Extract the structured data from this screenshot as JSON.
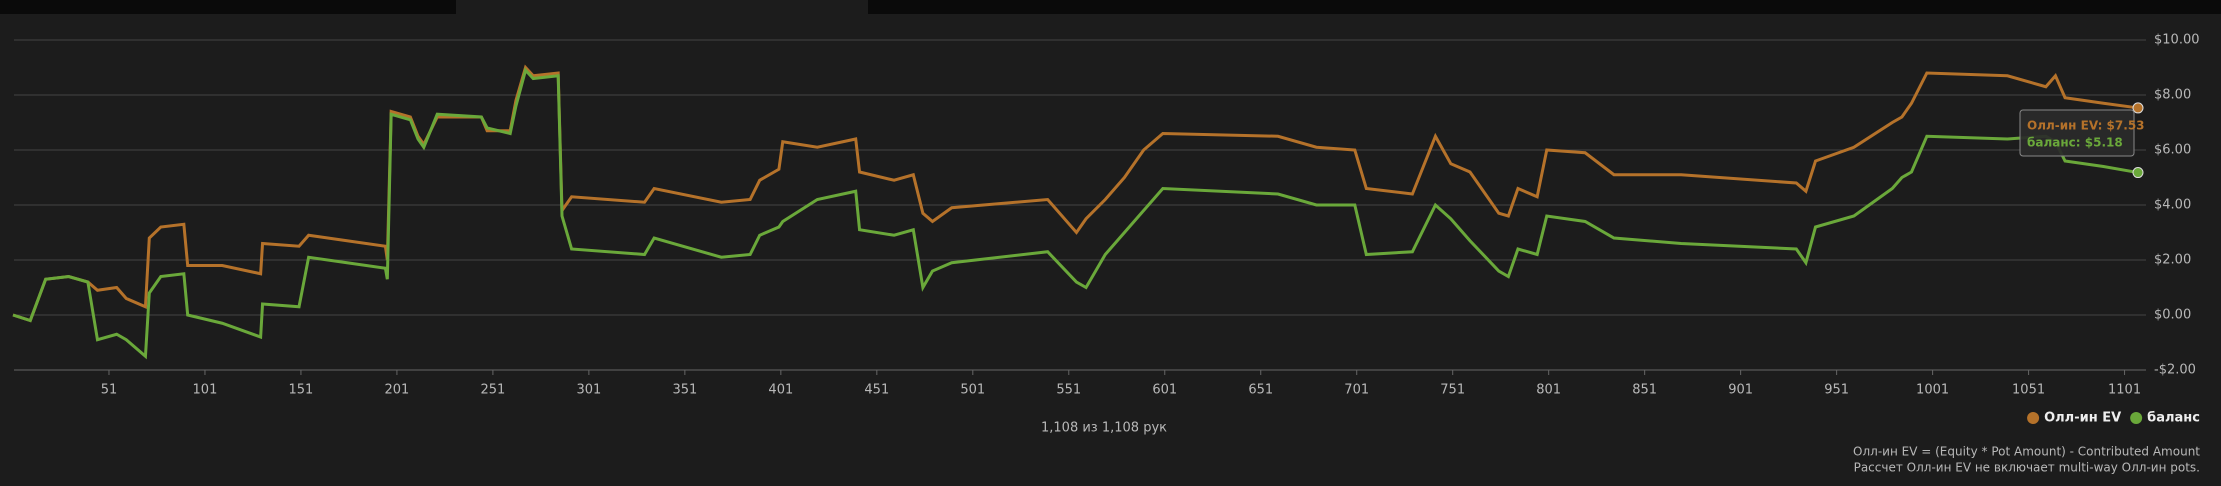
{
  "chart_data": {
    "type": "line",
    "subtitle": "1,108 из 1,108 рук",
    "notes": [
      "Олл-ин EV = (Equity * Pot Amount) - Contributed Amount",
      "Рассчет Олл-ин EV не включает multi-way Олл-ин pots."
    ],
    "tooltip": [
      "Олл-ин EV: $7.53",
      "баланс: $5.18"
    ],
    "legend": "bottom-right",
    "grid": true,
    "xlim": [
      1,
      1108
    ],
    "ylim": [
      -2,
      10
    ],
    "xticks": [
      51,
      101,
      151,
      201,
      251,
      301,
      351,
      401,
      451,
      501,
      551,
      601,
      651,
      701,
      751,
      801,
      851,
      901,
      951,
      1001,
      1051,
      1101
    ],
    "yticks": [
      {
        "value": -2,
        "label": "-$2.00"
      },
      {
        "value": 0,
        "label": "$0.00"
      },
      {
        "value": 2,
        "label": "$2.00"
      },
      {
        "value": 4,
        "label": "$4.00"
      },
      {
        "value": 6,
        "label": "$6.00"
      },
      {
        "value": 8,
        "label": "$8.00"
      },
      {
        "value": 10,
        "label": "$10.00"
      }
    ],
    "x": [
      1,
      10,
      18,
      30,
      40,
      45,
      55,
      60,
      70,
      72,
      78,
      90,
      92,
      110,
      130,
      131,
      150,
      155,
      175,
      195,
      196,
      198,
      208,
      212,
      215,
      222,
      245,
      248,
      260,
      263,
      268,
      272,
      285,
      287,
      292,
      330,
      335,
      370,
      385,
      390,
      400,
      402,
      420,
      440,
      442,
      460,
      470,
      475,
      480,
      490,
      540,
      555,
      560,
      570,
      580,
      590,
      600,
      660,
      680,
      700,
      706,
      730,
      742,
      750,
      760,
      775,
      780,
      785,
      795,
      800,
      820,
      835,
      870,
      930,
      935,
      940,
      960,
      980,
      985,
      990,
      998,
      1040,
      1060,
      1065,
      1070,
      1090,
      1108
    ],
    "series": [
      {
        "name": "Олл-ин EV",
        "color": "#b5722a",
        "values": [
          0.0,
          -0.2,
          1.3,
          1.4,
          1.2,
          0.9,
          1.0,
          0.6,
          0.3,
          2.8,
          3.2,
          3.3,
          1.8,
          1.8,
          1.5,
          2.6,
          2.5,
          2.9,
          2.7,
          2.5,
          2.0,
          7.4,
          7.2,
          6.5,
          6.2,
          7.2,
          7.2,
          6.7,
          6.7,
          7.8,
          9.0,
          8.7,
          8.8,
          3.8,
          4.3,
          4.1,
          4.6,
          4.1,
          4.2,
          4.9,
          5.3,
          6.3,
          6.1,
          6.4,
          5.2,
          4.9,
          5.1,
          3.7,
          3.4,
          3.9,
          4.2,
          3.0,
          3.5,
          4.2,
          5.0,
          6.0,
          6.6,
          6.5,
          6.1,
          6.0,
          4.6,
          4.4,
          6.5,
          5.5,
          5.2,
          3.7,
          3.6,
          4.6,
          4.3,
          6.0,
          5.9,
          5.1,
          5.1,
          4.8,
          4.5,
          5.6,
          6.1,
          7.0,
          7.2,
          7.7,
          8.8,
          8.7,
          8.3,
          8.7,
          7.9,
          7.7,
          7.53
        ]
      },
      {
        "name": "баланс",
        "color": "#6aa83a",
        "values": [
          0.0,
          -0.2,
          1.3,
          1.4,
          1.2,
          -0.9,
          -0.7,
          -0.9,
          -1.5,
          0.8,
          1.4,
          1.5,
          0.0,
          -0.3,
          -0.8,
          0.4,
          0.3,
          2.1,
          1.9,
          1.7,
          1.3,
          7.3,
          7.1,
          6.4,
          6.1,
          7.3,
          7.2,
          6.8,
          6.6,
          7.6,
          8.9,
          8.6,
          8.7,
          3.6,
          2.4,
          2.2,
          2.8,
          2.1,
          2.2,
          2.9,
          3.2,
          3.4,
          4.2,
          4.5,
          3.1,
          2.9,
          3.1,
          1.0,
          1.6,
          1.9,
          2.3,
          1.2,
          1.0,
          2.2,
          3.0,
          3.8,
          4.6,
          4.4,
          4.0,
          4.0,
          2.2,
          2.3,
          4.0,
          3.5,
          2.7,
          1.6,
          1.4,
          2.4,
          2.2,
          3.6,
          3.4,
          2.8,
          2.6,
          2.4,
          1.9,
          3.2,
          3.6,
          4.6,
          5.0,
          5.2,
          6.5,
          6.4,
          6.5,
          6.3,
          5.6,
          5.4,
          5.18
        ]
      }
    ]
  }
}
